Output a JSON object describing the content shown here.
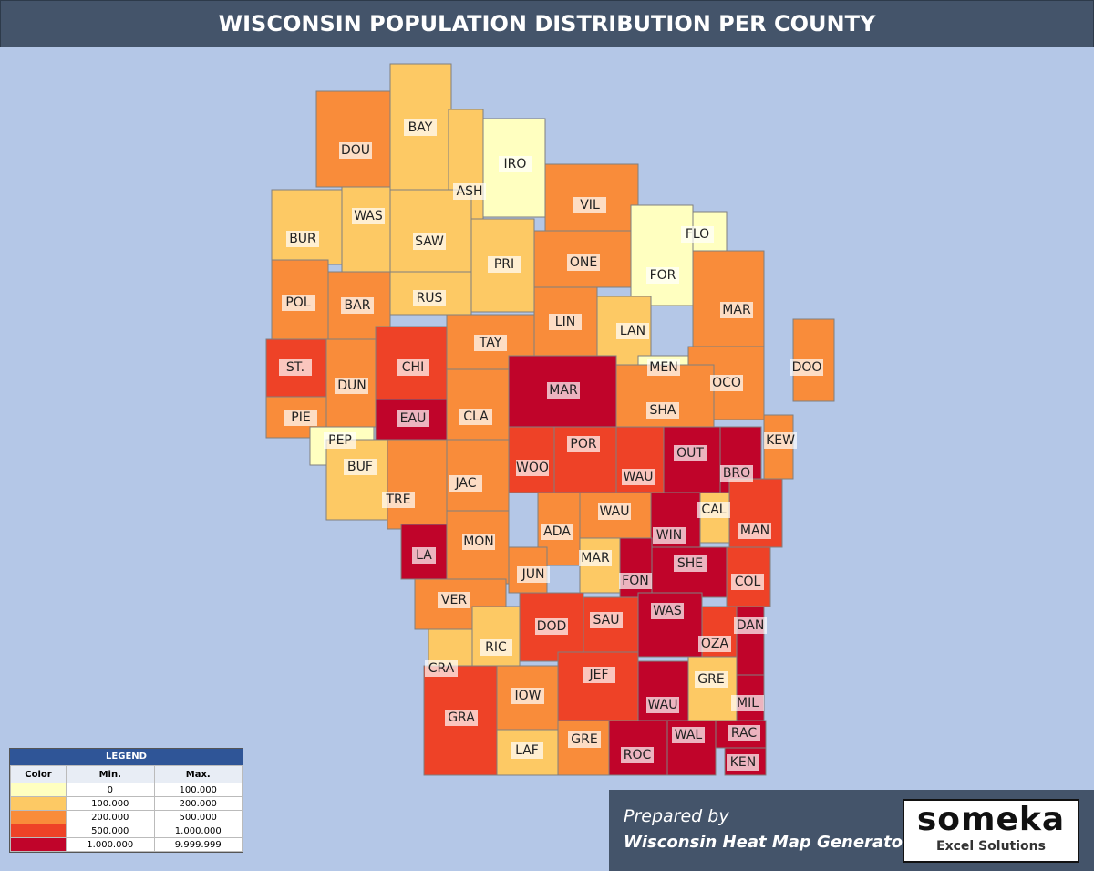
{
  "title": "WISCONSIN POPULATION DISTRIBUTION PER COUNTY",
  "counties": [
    {
      "label": "DOU",
      "color": "#f98c3a"
    },
    {
      "label": "BAY",
      "color": "#fdc964"
    },
    {
      "label": "IRO",
      "color": "#ffffc0"
    },
    {
      "label": "ASH",
      "color": "#fdc964"
    },
    {
      "label": "BUR",
      "color": "#fdc964"
    },
    {
      "label": "WAS",
      "color": "#fdc964"
    },
    {
      "label": "SAW",
      "color": "#fdc964"
    },
    {
      "label": "VIL",
      "color": "#f98c3a"
    },
    {
      "label": "FLO",
      "color": "#ffffc0"
    },
    {
      "label": "FOR",
      "color": "#ffffc0"
    },
    {
      "label": "PRI",
      "color": "#fdc964"
    },
    {
      "label": "ONE",
      "color": "#f98c3a"
    },
    {
      "label": "POL",
      "color": "#f98c3a"
    },
    {
      "label": "BAR",
      "color": "#f98c3a"
    },
    {
      "label": "RUS",
      "color": "#fdc964"
    },
    {
      "label": "MAR",
      "color": "#f98c3a"
    },
    {
      "label": "LIN",
      "color": "#f98c3a"
    },
    {
      "label": "LAN",
      "color": "#fdc964"
    },
    {
      "label": "TAY",
      "color": "#f98c3a"
    },
    {
      "label": "ST.",
      "color": "#ee4227"
    },
    {
      "label": "DUN",
      "color": "#f98c3a"
    },
    {
      "label": "CHI",
      "color": "#ee4227"
    },
    {
      "label": "MEN",
      "color": "#ffffc0"
    },
    {
      "label": "DOO",
      "color": "#f98c3a"
    },
    {
      "label": "OCO",
      "color": "#f98c3a"
    },
    {
      "label": "MAR",
      "color": "#c0042a"
    },
    {
      "label": "CLA",
      "color": "#f98c3a"
    },
    {
      "label": "PIE",
      "color": "#f98c3a"
    },
    {
      "label": "EAU",
      "color": "#c0042a"
    },
    {
      "label": "SHA",
      "color": "#f98c3a"
    },
    {
      "label": "KEW",
      "color": "#f98c3a"
    },
    {
      "label": "PEP",
      "color": "#ffffc0"
    },
    {
      "label": "BUF",
      "color": "#fdc964"
    },
    {
      "label": "POR",
      "color": "#ee4227"
    },
    {
      "label": "OUT",
      "color": "#c0042a"
    },
    {
      "label": "BRO",
      "color": "#c0042a"
    },
    {
      "label": "WOO",
      "color": "#ee4227"
    },
    {
      "label": "WAU",
      "color": "#ee4227"
    },
    {
      "label": "TRE",
      "color": "#f98c3a"
    },
    {
      "label": "JAC",
      "color": "#f98c3a"
    },
    {
      "label": "WAU",
      "color": "#f98c3a"
    },
    {
      "label": "CAL",
      "color": "#fdc964"
    },
    {
      "label": "MAN",
      "color": "#ee4227"
    },
    {
      "label": "WIN",
      "color": "#c0042a"
    },
    {
      "label": "ADA",
      "color": "#f98c3a"
    },
    {
      "label": "MON",
      "color": "#f98c3a"
    },
    {
      "label": "LA",
      "color": "#c0042a"
    },
    {
      "label": "MAR",
      "color": "#fdc964"
    },
    {
      "label": "FON",
      "color": "#c0042a"
    },
    {
      "label": "SHE",
      "color": "#c0042a"
    },
    {
      "label": "JUN",
      "color": "#f98c3a"
    },
    {
      "label": "COL",
      "color": "#ee4227"
    },
    {
      "label": "VER",
      "color": "#f98c3a"
    },
    {
      "label": "SAU",
      "color": "#ee4227"
    },
    {
      "label": "WAS",
      "color": "#c0042a"
    },
    {
      "label": "DAN",
      "color": "#c0042a"
    },
    {
      "label": "DOD",
      "color": "#ee4227"
    },
    {
      "label": "RIC",
      "color": "#fdc964"
    },
    {
      "label": "OZA",
      "color": "#ee4227"
    },
    {
      "label": "CRA",
      "color": "#fdc964"
    },
    {
      "label": "JEF",
      "color": "#ee4227"
    },
    {
      "label": "IOW",
      "color": "#f98c3a"
    },
    {
      "label": "GRE",
      "color": "#fdc964"
    },
    {
      "label": "WAU",
      "color": "#c0042a"
    },
    {
      "label": "MIL",
      "color": "#c0042a"
    },
    {
      "label": "GRA",
      "color": "#ee4227"
    },
    {
      "label": "LAF",
      "color": "#fdc964"
    },
    {
      "label": "GRE",
      "color": "#f98c3a"
    },
    {
      "label": "ROC",
      "color": "#c0042a"
    },
    {
      "label": "WAL",
      "color": "#c0042a"
    },
    {
      "label": "RAC",
      "color": "#c0042a"
    },
    {
      "label": "KEN",
      "color": "#c0042a"
    }
  ],
  "legend": {
    "title": "LEGEND",
    "headers": [
      "Color",
      "Min.",
      "Max."
    ],
    "rows": [
      {
        "color": "#ffffc0",
        "min": "0",
        "max": "100.000"
      },
      {
        "color": "#fdc964",
        "min": "100.000",
        "max": "200.000"
      },
      {
        "color": "#f98c3a",
        "min": "200.000",
        "max": "500.000"
      },
      {
        "color": "#ee4227",
        "min": "500.000",
        "max": "1.000.000"
      },
      {
        "color": "#c0042a",
        "min": "1.000.000",
        "max": "9.999.999"
      }
    ]
  },
  "footer": {
    "line1": "Prepared by",
    "line2": "Wisconsin Heat Map Generator",
    "logo": "someka",
    "logo_sub": "Excel Solutions"
  }
}
